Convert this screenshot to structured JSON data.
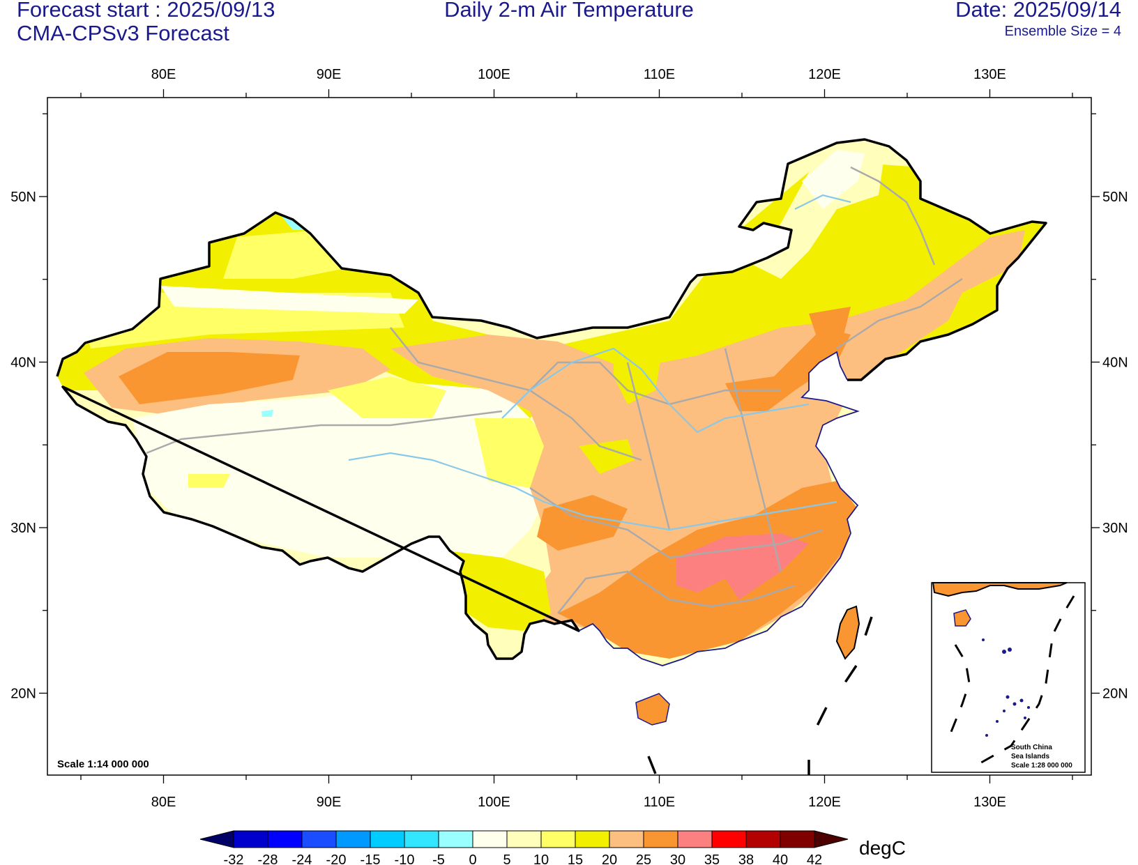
{
  "header": {
    "forecast_start": "Forecast start : 2025/09/13",
    "model": "CMA-CPSv3 Forecast",
    "title": "Daily 2-m Air Temperature",
    "date": "Date: 2025/09/14",
    "ensemble": "Ensemble Size = 4"
  },
  "axes": {
    "lon_ticks": [
      "80E",
      "90E",
      "100E",
      "110E",
      "120E",
      "130E"
    ],
    "lat_ticks": [
      "50N",
      "40N",
      "30N",
      "20N"
    ]
  },
  "map": {
    "scale": "Scale 1:14 000 000",
    "inset": {
      "line1": "South China",
      "line2": "Sea Islands",
      "line3": "Scale 1:28 000 000"
    }
  },
  "colorbar": {
    "unit": "degC",
    "labels": [
      "-32",
      "-28",
      "-24",
      "-20",
      "-15",
      "-10",
      "-5",
      "0",
      "5",
      "10",
      "15",
      "20",
      "25",
      "30",
      "35",
      "38",
      "40",
      "42"
    ],
    "colors": [
      "#000066",
      "#0000cc",
      "#0000ff",
      "#1a4dff",
      "#0099ff",
      "#00ccff",
      "#33e6ff",
      "#99ffff",
      "#ffffee",
      "#ffffbb",
      "#ffff66",
      "#f2f000",
      "#fdbf80",
      "#fa9632",
      "#fd8080",
      "#ff0000",
      "#b30000",
      "#800000",
      "#4d0000"
    ]
  },
  "colors": {
    "title_text": "#1a1a8c",
    "border": "#000000",
    "province_lines": "#aaaaaa",
    "rivers": "#88c8e8"
  }
}
